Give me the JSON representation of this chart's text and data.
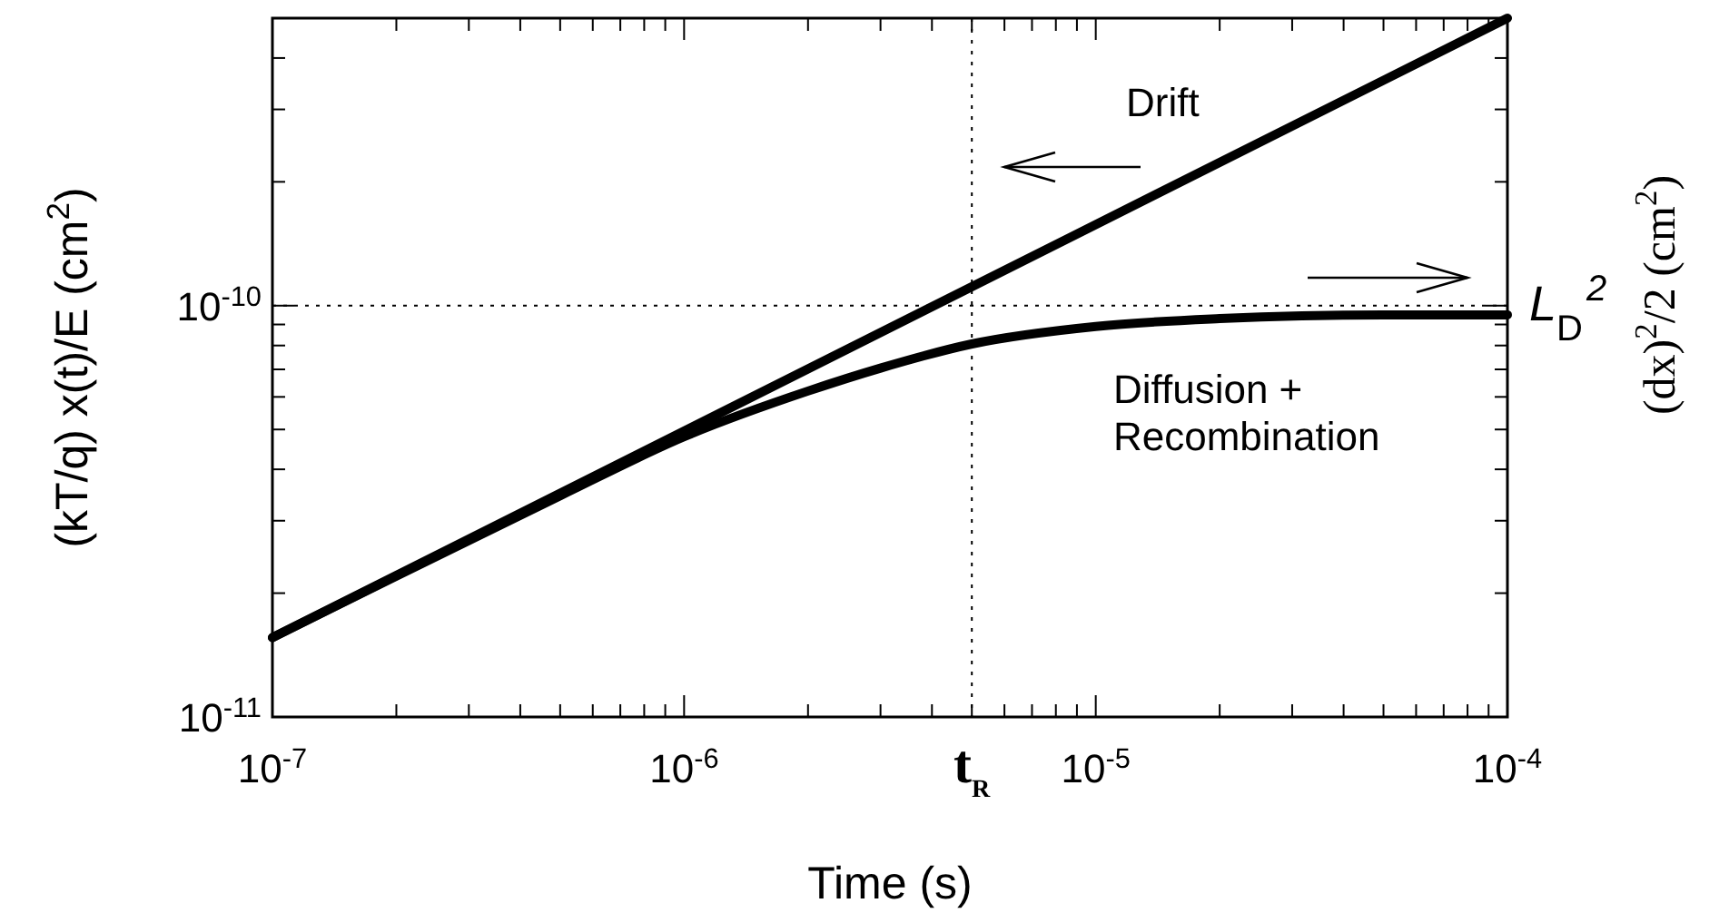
{
  "chart_data": {
    "type": "line",
    "xlabel": "Time (s)",
    "ylabel": "(kT/q) x(t)/E (cm$^{2}$)",
    "y2label": "(dx)$^{2}$/2 (cm$^{2}$)",
    "log": "xy",
    "grid": false,
    "marker": "none",
    "line_style": "solid",
    "xlim": [
      1e-07,
      0.0001
    ],
    "ylim": [
      1e-11,
      5e-10
    ],
    "xticks": [
      {
        "value": 1e-07,
        "label": "10$^{-7}$"
      },
      {
        "value": 2e-07,
        "label": null
      },
      {
        "value": 3e-07,
        "label": null
      },
      {
        "value": 4e-07,
        "label": null
      },
      {
        "value": 5e-07,
        "label": null
      },
      {
        "value": 6e-07,
        "label": null
      },
      {
        "value": 7e-07,
        "label": null
      },
      {
        "value": 8e-07,
        "label": null
      },
      {
        "value": 9e-07,
        "label": null
      },
      {
        "value": 1e-06,
        "label": "10$^{-6}$"
      },
      {
        "value": 2e-06,
        "label": null
      },
      {
        "value": 3e-06,
        "label": null
      },
      {
        "value": 4e-06,
        "label": null
      },
      {
        "value": 5e-06,
        "label": null
      },
      {
        "value": 6e-06,
        "label": null
      },
      {
        "value": 7e-06,
        "label": null
      },
      {
        "value": 8e-06,
        "label": null
      },
      {
        "value": 9e-06,
        "label": null
      },
      {
        "value": 1e-05,
        "label": "10$^{-5}$"
      },
      {
        "value": 2e-05,
        "label": null
      },
      {
        "value": 3e-05,
        "label": null
      },
      {
        "value": 4e-05,
        "label": null
      },
      {
        "value": 5e-05,
        "label": null
      },
      {
        "value": 6e-05,
        "label": null
      },
      {
        "value": 7e-05,
        "label": null
      },
      {
        "value": 8e-05,
        "label": null
      },
      {
        "value": 9e-05,
        "label": null
      },
      {
        "value": 0.0001,
        "label": "10$^{-4}$"
      }
    ],
    "yticks": [
      {
        "value": 1e-11,
        "label": "10$^{-11}$"
      },
      {
        "value": 2e-11,
        "label": null
      },
      {
        "value": 3e-11,
        "label": null
      },
      {
        "value": 4e-11,
        "label": null
      },
      {
        "value": 5e-11,
        "label": null
      },
      {
        "value": 6e-11,
        "label": null
      },
      {
        "value": 7e-11,
        "label": null
      },
      {
        "value": 8e-11,
        "label": null
      },
      {
        "value": 9e-11,
        "label": null
      },
      {
        "value": 1e-10,
        "label": "10$^{-10}$"
      },
      {
        "value": 2e-10,
        "label": null
      },
      {
        "value": 3e-10,
        "label": null
      },
      {
        "value": 4e-10,
        "label": null
      }
    ],
    "series": [
      {
        "name": "Drift",
        "color": "#000000",
        "x": [
          1e-07,
          0.0001
        ],
        "values": [
          1.56e-11,
          5e-10
        ]
      },
      {
        "name": "Diffusion + Recombination",
        "color": "#000000",
        "x": [
          1e-07,
          2e-07,
          5e-07,
          1e-06,
          2e-06,
          3e-06,
          5e-06,
          1e-05,
          2e-05,
          5e-05,
          0.0001
        ],
        "values": [
          1.56e-11,
          2.2e-11,
          3.45e-11,
          4.8e-11,
          6.2e-11,
          7.05e-11,
          8.07e-11,
          8.9e-11,
          9.3e-11,
          9.5e-11,
          9.5e-11
        ]
      }
    ],
    "ref_lines": [
      {
        "axis": "x",
        "value": 5e-06,
        "label": "t$_{R}$",
        "line_style": "dotted"
      },
      {
        "axis": "y",
        "value": 1e-10,
        "label": "L$_{D}$$^{2}$",
        "line_style": "dotted"
      }
    ]
  }
}
